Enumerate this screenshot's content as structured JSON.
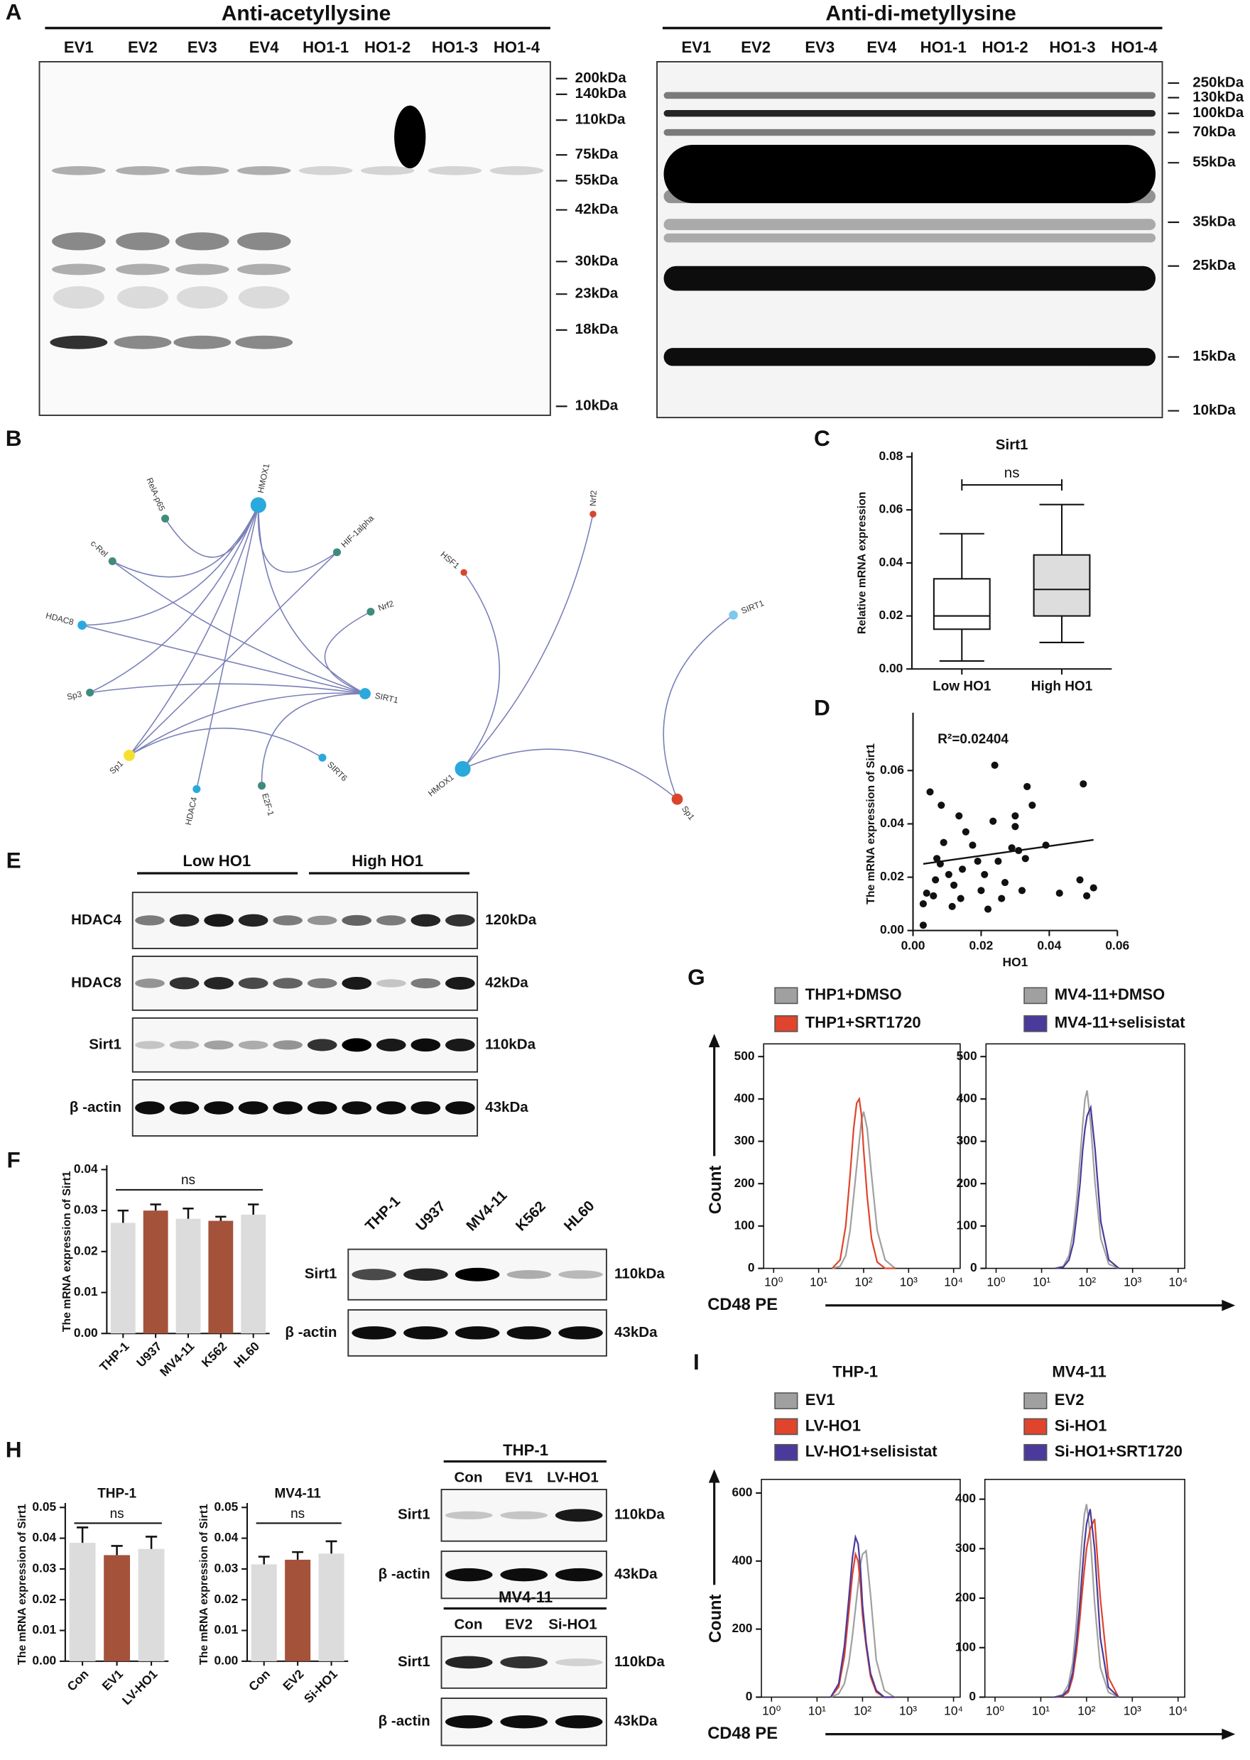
{
  "panel_labels": [
    "A",
    "B",
    "C",
    "D",
    "E",
    "F",
    "G",
    "H",
    "I"
  ],
  "blot_a_left": {
    "title": "Anti-acetyllysine",
    "lanes": [
      "EV1",
      "EV2",
      "EV3",
      "EV4",
      "HO1-1",
      "HO1-2",
      "HO1-3",
      "HO1-4"
    ],
    "markers": [
      "200kDa",
      "140kDa",
      "110kDa",
      "75kDa",
      "55kDa",
      "42kDa",
      "30kDa",
      "23kDa",
      "18kDa",
      "10kDa"
    ]
  },
  "blot_a_right": {
    "title": "Anti-di-metyllysine",
    "lanes": [
      "EV1",
      "EV2",
      "EV3",
      "EV4",
      "HO1-1",
      "HO1-2",
      "HO1-3",
      "HO1-4"
    ],
    "markers": [
      "250kDa",
      "130kDa",
      "100kDa",
      "70kDa",
      "55kDa",
      "35kDa",
      "25kDa",
      "15kDa",
      "10kDa"
    ]
  },
  "network_b": {
    "left": [
      "RelA-p65",
      "HMOX1",
      "c-Rel",
      "HIF-1alpha",
      "Nrf2",
      "HDAC8",
      "SIRT1",
      "Sp3",
      "Sp1",
      "HDAC4",
      "E2F-1",
      "SIRT6"
    ],
    "right": [
      "HSF1",
      "Nrf2",
      "SIRT1",
      "HMOX1",
      "Sp1"
    ]
  },
  "blot_e": {
    "groups": [
      "Low HO1",
      "High HO1"
    ],
    "rows": [
      {
        "name": "HDAC4",
        "size": "120kDa"
      },
      {
        "name": "HDAC8",
        "size": "42kDa"
      },
      {
        "name": "Sirt1",
        "size": "110kDa"
      },
      {
        "name": "β -actin",
        "size": "43kDa"
      }
    ]
  },
  "blot_f": {
    "lanes": [
      "THP-1",
      "U937",
      "MV4-11",
      "K562",
      "HL60"
    ],
    "rows": [
      {
        "name": "Sirt1",
        "size": "110kDa"
      },
      {
        "name": "β -actin",
        "size": "43kDa"
      }
    ]
  },
  "blot_h": [
    {
      "title": "THP-1",
      "lanes": [
        "Con",
        "EV1",
        "LV-HO1"
      ],
      "rows": [
        {
          "name": "Sirt1",
          "size": "110kDa"
        },
        {
          "name": "β -actin",
          "size": "43kDa"
        }
      ]
    },
    {
      "title": "MV4-11",
      "lanes": [
        "Con",
        "EV2",
        "Si-HO1"
      ],
      "rows": [
        {
          "name": "Sirt1",
          "size": "110kDa"
        },
        {
          "name": "β -actin",
          "size": "43kDa"
        }
      ]
    }
  ],
  "chart_data": [
    {
      "type": "box",
      "title": "Sirt1",
      "ylabel": "Relative mRNA expression",
      "annotation": "ns",
      "categories": [
        "Low HO1",
        "High HO1"
      ],
      "colors": [
        "#ffffff",
        "#dddddd"
      ],
      "boxes": [
        {
          "min": 0.003,
          "q1": 0.015,
          "median": 0.02,
          "q3": 0.034,
          "max": 0.051
        },
        {
          "min": 0.01,
          "q1": 0.02,
          "median": 0.03,
          "q3": 0.043,
          "max": 0.062
        }
      ],
      "ylim": [
        0,
        0.08
      ],
      "yticks": [
        {
          "value": 0,
          "label": "0.00"
        },
        0.02,
        0.04,
        0.06,
        0.08
      ]
    },
    {
      "type": "scatter",
      "xlabel": "HO1",
      "ylabel": "The mRNA expression of Sirt1",
      "annotation": "R²=0.02404",
      "color": "#111111",
      "x": [
        0.003,
        0.003,
        0.004,
        0.005,
        0.006,
        0.0066,
        0.007,
        0.008,
        0.0083,
        0.009,
        0.0105,
        0.0115,
        0.012,
        0.0135,
        0.014,
        0.0145,
        0.0155,
        0.0175,
        0.019,
        0.02,
        0.021,
        0.022,
        0.0235,
        0.024,
        0.025,
        0.026,
        0.027,
        0.029,
        0.03,
        0.03,
        0.031,
        0.032,
        0.033,
        0.0335,
        0.035,
        0.039,
        0.043,
        0.049,
        0.05,
        0.051,
        0.053
      ],
      "y": [
        0.002,
        0.01,
        0.014,
        0.052,
        0.013,
        0.019,
        0.027,
        0.025,
        0.047,
        0.033,
        0.021,
        0.009,
        0.017,
        0.043,
        0.012,
        0.023,
        0.037,
        0.032,
        0.026,
        0.015,
        0.021,
        0.008,
        0.041,
        0.062,
        0.026,
        0.012,
        0.018,
        0.031,
        0.043,
        0.039,
        0.03,
        0.015,
        0.027,
        0.054,
        0.047,
        0.032,
        0.014,
        0.019,
        0.055,
        0.013,
        0.016
      ],
      "trendline": {
        "x": [
          0.003,
          0.053
        ],
        "y": [
          0.025,
          0.034
        ]
      },
      "xlim": [
        0,
        0.06
      ],
      "xticks": [
        {
          "value": 0,
          "label": "0.00"
        },
        0.02,
        0.04,
        0.06
      ],
      "ylim": [
        0,
        0.08
      ],
      "yticks": [
        {
          "value": 0,
          "label": "0.00"
        },
        0.02,
        0.04,
        0.06
      ]
    },
    {
      "type": "bar",
      "ylabel": "The mRNA expression of Sirt1",
      "annotation": "ns",
      "categories": [
        "THP-1",
        "U937",
        "MV4-11",
        "K562",
        "HL60"
      ],
      "values": [
        0.027,
        0.03,
        0.028,
        0.0275,
        0.029
      ],
      "errors": [
        0.003,
        0.0015,
        0.0025,
        0.001,
        0.0025
      ],
      "colors": [
        "#dcdcdc",
        "#a5523b",
        "#dcdcdc",
        "#a5523b",
        "#dcdcdc"
      ],
      "ylim": [
        0,
        0.04
      ],
      "yticks": [
        {
          "value": 0,
          "label": "0.00"
        },
        0.01,
        0.02,
        0.03,
        0.04
      ]
    },
    {
      "type": "bar",
      "title": "THP-1",
      "ylabel": "The mRNA expression of Sirt1",
      "annotation": "ns",
      "categories": [
        "Con",
        "EV1",
        "LV-HO1"
      ],
      "values": [
        0.0385,
        0.0345,
        0.0365
      ],
      "errors": [
        0.005,
        0.003,
        0.004
      ],
      "colors": [
        "#dcdcdc",
        "#a5523b",
        "#dcdcdc"
      ],
      "ylim": [
        0,
        0.05
      ],
      "yticks": [
        {
          "value": 0,
          "label": "0.00"
        },
        0.01,
        0.02,
        0.03,
        0.04,
        0.05
      ]
    },
    {
      "type": "bar",
      "title": "MV4-11",
      "ylabel": "The mRNA expression of Sirt1",
      "annotation": "ns",
      "categories": [
        "Con",
        "EV2",
        "Si-HO1"
      ],
      "values": [
        0.0315,
        0.033,
        0.035
      ],
      "errors": [
        0.0025,
        0.0025,
        0.004
      ],
      "colors": [
        "#dcdcdc",
        "#a5523b",
        "#dcdcdc"
      ],
      "ylim": [
        0,
        0.05
      ],
      "yticks": [
        {
          "value": 0,
          "label": "0.00"
        },
        0.01,
        0.02,
        0.03,
        0.04,
        0.05
      ]
    },
    {
      "type": "line",
      "xscale": "log",
      "xlabel": "CD48 PE",
      "ylabel": "Count",
      "x": [
        20,
        30,
        40,
        50,
        60,
        70,
        80,
        90,
        100,
        120,
        150,
        200,
        300,
        500
      ],
      "series": [
        {
          "name": "THP1+DMSO",
          "color": "#a0a0a0",
          "values": [
            0,
            5,
            30,
            90,
            170,
            240,
            300,
            350,
            370,
            330,
            220,
            90,
            20,
            0
          ]
        },
        {
          "name": "THP1+SRT1720",
          "color": "#e0442c",
          "values": [
            0,
            20,
            100,
            220,
            330,
            390,
            400,
            360,
            280,
            170,
            70,
            15,
            0,
            0
          ]
        }
      ],
      "xlim": [
        0.6,
        14000
      ],
      "xticks": [
        {
          "value": 1,
          "label": "10⁰"
        },
        {
          "value": 10,
          "label": "10¹"
        },
        {
          "value": 100,
          "label": "10²"
        },
        {
          "value": 1000,
          "label": "10³"
        },
        {
          "value": 10000,
          "label": "10⁴"
        }
      ],
      "ylim": [
        0,
        530
      ],
      "yticks": [
        0,
        100,
        200,
        300,
        400,
        500
      ]
    },
    {
      "type": "line",
      "xscale": "log",
      "x": [
        20,
        30,
        40,
        50,
        60,
        70,
        80,
        90,
        100,
        120,
        150,
        200,
        300,
        500
      ],
      "series": [
        {
          "name": "MV4-11+DMSO",
          "color": "#a0a0a0",
          "values": [
            0,
            5,
            30,
            90,
            170,
            260,
            340,
            400,
            420,
            340,
            200,
            70,
            10,
            0
          ]
        },
        {
          "name": "MV4-11+selisistat",
          "color": "#4b3a9c",
          "values": [
            0,
            3,
            20,
            60,
            130,
            200,
            280,
            330,
            360,
            380,
            280,
            110,
            20,
            0
          ]
        }
      ],
      "xlim": [
        0.6,
        14000
      ],
      "xticks": [
        {
          "value": 1,
          "label": "10⁰"
        },
        {
          "value": 10,
          "label": "10¹"
        },
        {
          "value": 100,
          "label": "10²"
        },
        {
          "value": 1000,
          "label": "10³"
        },
        {
          "value": 10000,
          "label": "10⁴"
        }
      ],
      "ylim": [
        0,
        530
      ],
      "yticks": [
        0,
        100,
        200,
        300,
        400,
        500
      ]
    },
    {
      "type": "line",
      "xscale": "log",
      "title": "THP-1",
      "xlabel": "CD48 PE",
      "ylabel": "Count",
      "x": [
        20,
        30,
        40,
        50,
        60,
        70,
        80,
        90,
        100,
        120,
        150,
        200,
        300,
        500
      ],
      "series": [
        {
          "name": "EV1",
          "color": "#a0a0a0",
          "values": [
            0,
            10,
            40,
            100,
            180,
            260,
            330,
            390,
            420,
            430,
            300,
            110,
            20,
            0
          ]
        },
        {
          "name": "LV-HO1",
          "color": "#e0442c",
          "values": [
            0,
            30,
            120,
            250,
            360,
            420,
            400,
            330,
            240,
            150,
            60,
            15,
            0,
            0
          ]
        },
        {
          "name": "LV-HO1+selisistat",
          "color": "#4b3a9c",
          "values": [
            0,
            40,
            150,
            290,
            410,
            470,
            450,
            380,
            270,
            160,
            70,
            20,
            0,
            0
          ]
        }
      ],
      "xlim": [
        0.6,
        14000
      ],
      "xticks": [
        {
          "value": 1,
          "label": "10⁰"
        },
        {
          "value": 10,
          "label": "10¹"
        },
        {
          "value": 100,
          "label": "10²"
        },
        {
          "value": 1000,
          "label": "10³"
        },
        {
          "value": 10000,
          "label": "10⁴"
        }
      ],
      "ylim": [
        0,
        640
      ],
      "yticks": [
        0,
        200,
        400,
        600
      ]
    },
    {
      "type": "line",
      "xscale": "log",
      "title": "MV4-11",
      "x": [
        20,
        30,
        40,
        50,
        60,
        70,
        80,
        90,
        100,
        120,
        150,
        200,
        300,
        500
      ],
      "series": [
        {
          "name": "EV2",
          "color": "#a0a0a0",
          "values": [
            0,
            5,
            25,
            70,
            150,
            250,
            320,
            370,
            390,
            330,
            190,
            60,
            10,
            0
          ]
        },
        {
          "name": "Si-HO1",
          "color": "#e0442c",
          "values": [
            0,
            2,
            10,
            40,
            90,
            150,
            210,
            260,
            300,
            340,
            360,
            200,
            40,
            0
          ]
        },
        {
          "name": "Si-HO1+SRT1720",
          "color": "#4b3a9c",
          "values": [
            0,
            3,
            15,
            50,
            110,
            180,
            250,
            310,
            350,
            380,
            300,
            120,
            20,
            0
          ]
        }
      ],
      "xlim": [
        0.6,
        14000
      ],
      "xticks": [
        {
          "value": 1,
          "label": "10⁰"
        },
        {
          "value": 10,
          "label": "10¹"
        },
        {
          "value": 100,
          "label": "10²"
        },
        {
          "value": 1000,
          "label": "10³"
        },
        {
          "value": 10000,
          "label": "10⁴"
        }
      ],
      "ylim": [
        0,
        440
      ],
      "yticks": [
        0,
        100,
        200,
        300,
        400
      ]
    }
  ]
}
